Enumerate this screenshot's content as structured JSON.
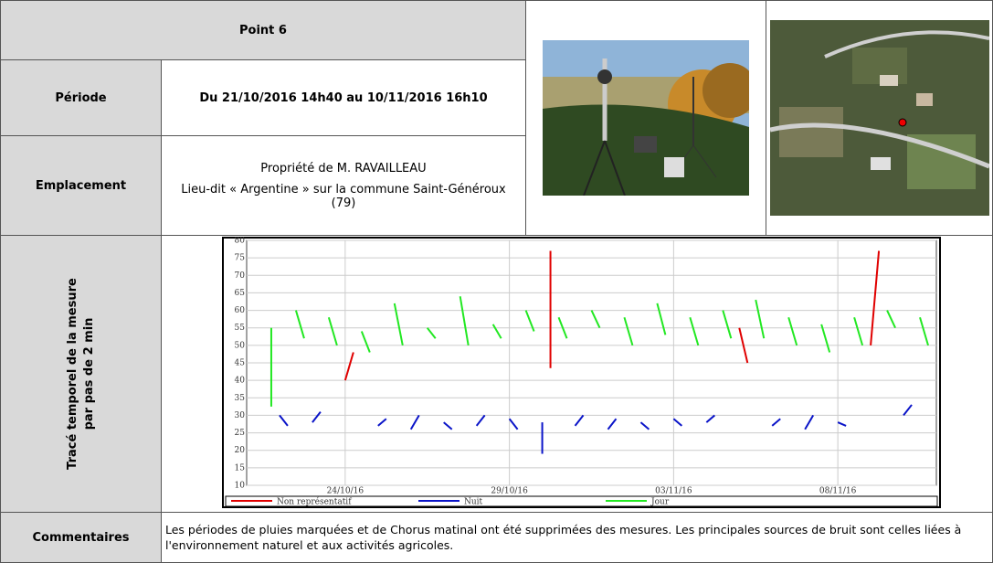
{
  "header": {
    "title": "Point 6"
  },
  "rows": {
    "period_label": "Période",
    "period_value": "Du 21/10/2016 14h40 au 10/11/2016 16h10",
    "location_label": "Emplacement",
    "location_lines": [
      "Propriété de M. RAVAILLEAU",
      "Lieu-dit « Argentine » sur la commune Saint-Généroux (79)"
    ],
    "chart_label": [
      "Tracé temporel de la mesure",
      "par pas de 2 min"
    ],
    "comments_label": "Commentaires",
    "comments_text": "Les périodes de pluies marquées et de Chorus matinal ont été supprimées des mesures. Les principales sources de bruit sont celles liées à l'environnement naturel et aux activités agricoles."
  },
  "chart_data": {
    "type": "line",
    "xlim": [
      -3,
      81
    ],
    "xticks": [
      {
        "value": 9,
        "label": "24/10/16"
      },
      {
        "value": 29,
        "label": "29/10/16"
      },
      {
        "value": 49,
        "label": "03/11/16"
      },
      {
        "value": 69,
        "label": "08/11/16"
      }
    ],
    "ylim": [
      10,
      80
    ],
    "yticks": [
      10,
      15,
      20,
      25,
      30,
      35,
      40,
      45,
      50,
      55,
      60,
      65,
      70,
      75,
      80
    ],
    "grid": true,
    "series": [
      {
        "name": "Non représentatif",
        "color": "#e00000",
        "values": [
          null,
          null,
          null,
          null,
          null,
          null,
          null,
          null,
          null,
          40,
          48,
          null,
          null,
          null,
          null,
          null,
          null,
          null,
          null,
          null,
          null,
          null,
          null,
          null,
          null,
          null,
          null,
          null,
          null,
          null,
          null,
          null,
          null,
          null,
          77,
          null,
          null,
          null,
          null,
          null,
          null,
          null,
          null,
          null,
          null,
          null,
          null,
          null,
          null,
          null,
          null,
          null,
          null,
          null,
          null,
          null,
          null,
          55,
          45,
          null,
          null,
          null,
          null,
          null,
          null,
          null,
          null,
          null,
          null,
          null,
          null,
          null,
          null,
          50,
          77,
          null,
          null,
          null,
          null,
          null,
          null
        ]
      },
      {
        "name": "Nuit",
        "color": "#0a14c8",
        "values": [
          null,
          30,
          27,
          null,
          null,
          28,
          31,
          null,
          null,
          null,
          null,
          null,
          null,
          27,
          29,
          null,
          null,
          26,
          30,
          null,
          null,
          28,
          26,
          null,
          null,
          27,
          30,
          null,
          null,
          29,
          26,
          null,
          null,
          28,
          null,
          null,
          null,
          27,
          30,
          null,
          null,
          26,
          29,
          null,
          null,
          28,
          26,
          null,
          null,
          29,
          27,
          null,
          null,
          28,
          30,
          null,
          null,
          null,
          null,
          null,
          null,
          27,
          29,
          null,
          null,
          26,
          30,
          null,
          null,
          28,
          27,
          null,
          null,
          null,
          null,
          null,
          null,
          30,
          33,
          null,
          null
        ]
      },
      {
        "name": "Jour",
        "color": "#22e822",
        "values": [
          55,
          null,
          null,
          60,
          52,
          null,
          null,
          58,
          50,
          null,
          null,
          54,
          48,
          null,
          null,
          62,
          50,
          null,
          null,
          55,
          52,
          null,
          null,
          64,
          50,
          null,
          null,
          56,
          52,
          null,
          null,
          60,
          54,
          null,
          null,
          58,
          52,
          null,
          null,
          60,
          55,
          null,
          null,
          58,
          50,
          null,
          null,
          62,
          53,
          null,
          null,
          58,
          50,
          null,
          null,
          60,
          52,
          null,
          null,
          63,
          52,
          null,
          null,
          58,
          50,
          null,
          null,
          56,
          48,
          null,
          null,
          58,
          50,
          null,
          null,
          60,
          55,
          null,
          null,
          58,
          50
        ]
      }
    ]
  }
}
